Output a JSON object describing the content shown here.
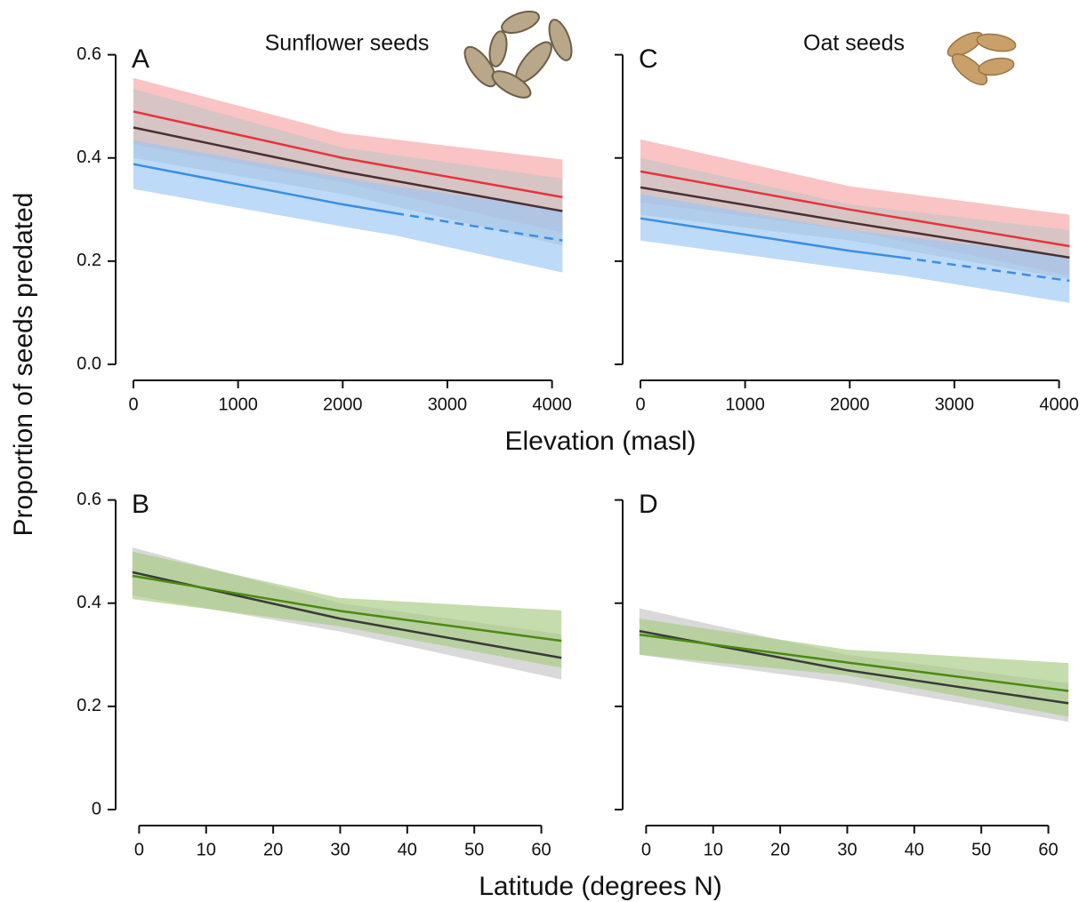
{
  "chart_data": [
    {
      "type": "line",
      "panel": "A",
      "title": "Sunflower seeds",
      "ylabel": "Proportion of seeds predated",
      "xlabel": "Elevation (masl)",
      "xlim": [
        -170,
        4250
      ],
      "xticks": [
        0,
        1000,
        2000,
        3000,
        4000
      ],
      "ylim": [
        0,
        0.62
      ],
      "yticks": [
        {
          "value": 0,
          "label": "0.0"
        },
        0.2,
        0.4,
        0.6
      ],
      "ytick_labels": true,
      "series": [
        {
          "color": "#e8333a",
          "band_color": "#f7a3a5",
          "x": [
            0,
            2000,
            4100
          ],
          "values": [
            0.49,
            0.4,
            0.324
          ],
          "lower": [
            0.426,
            0.353,
            0.255
          ],
          "upper": [
            0.555,
            0.448,
            0.397
          ]
        },
        {
          "color": "#4a2f35",
          "band_color": "#c4c4c4",
          "x": [
            0,
            2000,
            4100
          ],
          "values": [
            0.459,
            0.374,
            0.297
          ],
          "lower": [
            0.4,
            0.33,
            0.23
          ],
          "upper": [
            0.534,
            0.42,
            0.36
          ]
        },
        {
          "color": "#3a8ee0",
          "band_color": "#99c6f4",
          "x": [
            0,
            2000,
            2500,
            4100
          ],
          "values": [
            0.388,
            0.31,
            0.293,
            0.24
          ],
          "lower": [
            0.34,
            0.267,
            0.25,
            0.178
          ],
          "upper": [
            0.434,
            0.362,
            0.345,
            0.3
          ],
          "dash_from": 2500
        }
      ]
    },
    {
      "type": "line",
      "panel": "B",
      "xlabel": "Latitude (degrees N)",
      "xlim": [
        -3.5,
        65.5
      ],
      "xticks": [
        0,
        10,
        20,
        30,
        40,
        50,
        60
      ],
      "ylim": [
        0,
        0.62
      ],
      "yticks": [
        0,
        0.2,
        0.4,
        0.6
      ],
      "ytick_labels": true,
      "series": [
        {
          "color": "#3a3a3a",
          "band_color": "#c4c4c4",
          "x": [
            -1,
            30,
            63
          ],
          "values": [
            0.46,
            0.37,
            0.294
          ],
          "lower": [
            0.415,
            0.345,
            0.252
          ],
          "upper": [
            0.508,
            0.4,
            0.34
          ]
        },
        {
          "color": "#4a8a10",
          "band_color": "#a6cb80",
          "x": [
            -1,
            30,
            63
          ],
          "values": [
            0.453,
            0.385,
            0.327
          ],
          "lower": [
            0.408,
            0.355,
            0.275
          ],
          "upper": [
            0.5,
            0.41,
            0.386
          ]
        }
      ]
    },
    {
      "type": "line",
      "panel": "C",
      "title": "Oat seeds",
      "xlim": [
        -170,
        4250
      ],
      "xticks": [
        0,
        1000,
        2000,
        3000,
        4000
      ],
      "ylim": [
        0,
        0.62
      ],
      "yticks": [
        0,
        0.2,
        0.4,
        0.6
      ],
      "ytick_labels": false,
      "series": [
        {
          "color": "#e8333a",
          "band_color": "#f7a3a5",
          "x": [
            0,
            2000,
            4100
          ],
          "values": [
            0.374,
            0.3,
            0.229
          ],
          "lower": [
            0.314,
            0.26,
            0.172
          ],
          "upper": [
            0.436,
            0.345,
            0.29
          ]
        },
        {
          "color": "#4a2f35",
          "band_color": "#c4c4c4",
          "x": [
            0,
            2000,
            4100
          ],
          "values": [
            0.343,
            0.275,
            0.207
          ],
          "lower": [
            0.29,
            0.24,
            0.165
          ],
          "upper": [
            0.4,
            0.31,
            0.26
          ]
        },
        {
          "color": "#3a8ee0",
          "band_color": "#99c6f4",
          "x": [
            0,
            2000,
            2500,
            4100
          ],
          "values": [
            0.283,
            0.22,
            0.207,
            0.162
          ],
          "lower": [
            0.24,
            0.185,
            0.172,
            0.119
          ],
          "upper": [
            0.33,
            0.26,
            0.248,
            0.21
          ],
          "dash_from": 2500
        }
      ]
    },
    {
      "type": "line",
      "panel": "D",
      "xlim": [
        -3.5,
        65.5
      ],
      "xticks": [
        0,
        10,
        20,
        30,
        40,
        50,
        60
      ],
      "ylim": [
        0,
        0.62
      ],
      "yticks": [
        0,
        0.2,
        0.4,
        0.6
      ],
      "ytick_labels": false,
      "series": [
        {
          "color": "#3a3a3a",
          "band_color": "#c4c4c4",
          "x": [
            -1,
            30,
            63
          ],
          "values": [
            0.346,
            0.27,
            0.206
          ],
          "lower": [
            0.3,
            0.245,
            0.17
          ],
          "upper": [
            0.39,
            0.3,
            0.245
          ]
        },
        {
          "color": "#4a8a10",
          "band_color": "#a6cb80",
          "x": [
            -1,
            30,
            63
          ],
          "values": [
            0.339,
            0.285,
            0.23
          ],
          "lower": [
            0.3,
            0.26,
            0.18
          ],
          "upper": [
            0.37,
            0.31,
            0.284
          ]
        }
      ]
    }
  ]
}
